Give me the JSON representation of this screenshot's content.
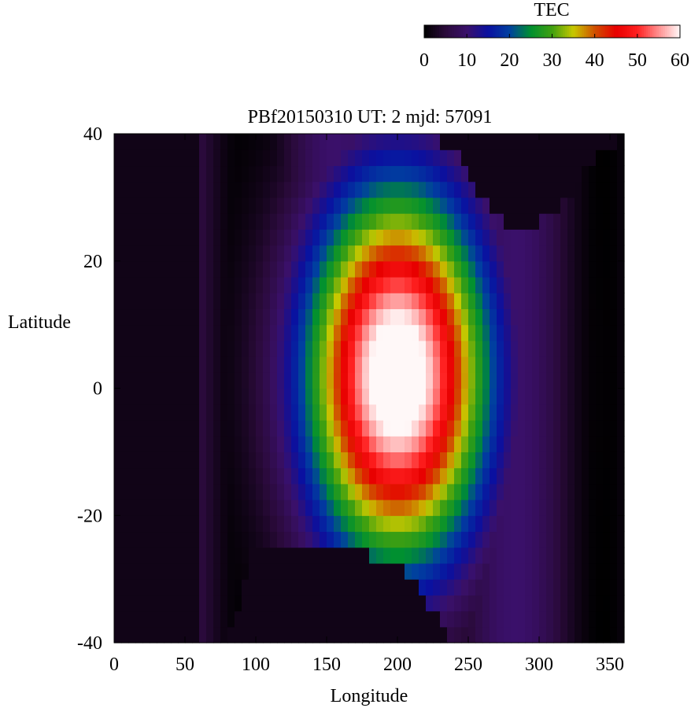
{
  "chart_data": {
    "type": "heatmap",
    "title": "PBf20150310  UT: 2  mjd: 57091",
    "xlabel": "Longitude",
    "ylabel": "Latitude",
    "xlim": [
      0,
      360
    ],
    "ylim": [
      -40,
      40
    ],
    "x_ticks": [
      0,
      50,
      100,
      150,
      200,
      250,
      300,
      350
    ],
    "y_ticks": [
      -40,
      -20,
      0,
      20,
      40
    ],
    "grid": false,
    "colorbar": {
      "label": "TEC",
      "range": [
        0,
        60
      ],
      "ticks": [
        0,
        10,
        20,
        30,
        40,
        50,
        60
      ],
      "placement": "top-right",
      "stops": [
        {
          "v": 0,
          "color": "#000000"
        },
        {
          "v": 5,
          "color": "#2a0a3a"
        },
        {
          "v": 10,
          "color": "#3a106a"
        },
        {
          "v": 15,
          "color": "#0a10a0"
        },
        {
          "v": 20,
          "color": "#0040a0"
        },
        {
          "v": 25,
          "color": "#009030"
        },
        {
          "v": 30,
          "color": "#40a010"
        },
        {
          "v": 35,
          "color": "#c8c800"
        },
        {
          "v": 40,
          "color": "#d05000"
        },
        {
          "v": 45,
          "color": "#e80000"
        },
        {
          "v": 50,
          "color": "#ff2020"
        },
        {
          "v": 55,
          "color": "#ff9090"
        },
        {
          "v": 60,
          "color": "#fff8f8"
        }
      ]
    },
    "grid_cells": {
      "lon_step": 5,
      "lat_step": 2.5,
      "night_tec": 2,
      "peak_tec": 66,
      "peak_lon": 200,
      "peak_lat": 2,
      "lon_width": 52,
      "lat_width": 24,
      "night_boundary_lon": [
        60,
        70,
        80,
        100,
        120,
        140,
        160,
        180,
        200,
        220,
        240,
        250,
        260,
        270,
        280,
        290,
        300,
        310,
        320,
        330,
        340,
        350,
        360
      ],
      "night_boundary_north_lat": [
        40,
        40,
        40,
        40,
        40,
        40,
        40,
        40,
        40,
        40,
        37,
        34,
        30,
        27,
        25,
        25,
        26,
        28,
        30,
        33,
        36,
        38,
        40
      ],
      "night_boundary_south_lat": [
        -40,
        -40,
        -40,
        -24,
        -24,
        -24,
        -25,
        -26,
        -28,
        -33,
        -40,
        -40,
        -40,
        -40,
        -40,
        -40,
        -40,
        -40,
        -40,
        -40,
        -40,
        -40,
        -40
      ]
    }
  }
}
